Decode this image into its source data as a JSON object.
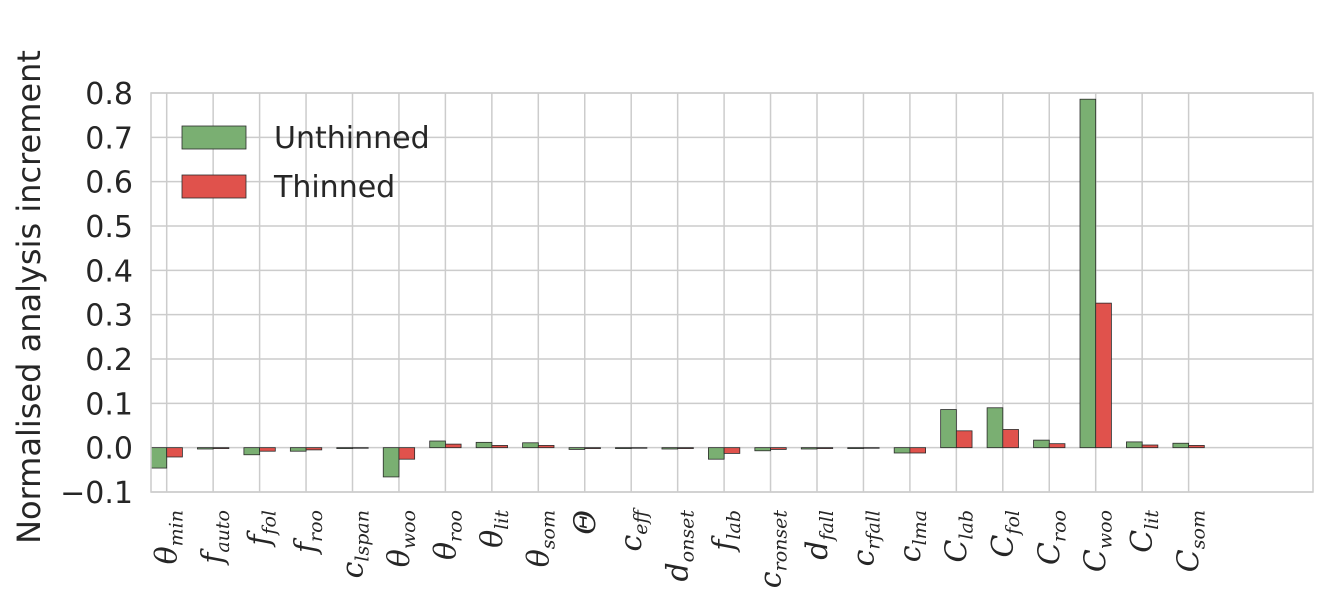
{
  "chart_data": {
    "type": "bar",
    "ylabel": "Normalised analysis increment",
    "xlabel": "",
    "title": "",
    "ylim": [
      -0.1,
      0.8
    ],
    "yticks": [
      -0.1,
      0.0,
      0.1,
      0.2,
      0.3,
      0.4,
      0.5,
      0.6,
      0.7,
      0.8
    ],
    "ytick_labels": [
      "−0.1",
      "0.0",
      "0.1",
      "0.2",
      "0.3",
      "0.4",
      "0.5",
      "0.6",
      "0.7",
      "0.8"
    ],
    "grid": true,
    "legend_position": "top-left",
    "categories": [
      {
        "base": "θ",
        "sub": "min"
      },
      {
        "base": "f",
        "sub": "auto"
      },
      {
        "base": "f",
        "sub": "fol"
      },
      {
        "base": "f",
        "sub": "roo"
      },
      {
        "base": "c",
        "sub": "lspan"
      },
      {
        "base": "θ",
        "sub": "woo"
      },
      {
        "base": "θ",
        "sub": "roo"
      },
      {
        "base": "θ",
        "sub": "lit"
      },
      {
        "base": "θ",
        "sub": "som"
      },
      {
        "base": "Θ",
        "sub": ""
      },
      {
        "base": "c",
        "sub": "eff"
      },
      {
        "base": "d",
        "sub": "onset"
      },
      {
        "base": "f",
        "sub": "lab"
      },
      {
        "base": "c",
        "sub": "ronset"
      },
      {
        "base": "d",
        "sub": "fall"
      },
      {
        "base": "c",
        "sub": "rfall"
      },
      {
        "base": "c",
        "sub": "lma"
      },
      {
        "base": "C",
        "sub": "lab"
      },
      {
        "base": "C",
        "sub": "fol"
      },
      {
        "base": "C",
        "sub": "roo"
      },
      {
        "base": "C",
        "sub": "woo"
      },
      {
        "base": "C",
        "sub": "lit"
      },
      {
        "base": "C",
        "sub": "som"
      }
    ],
    "series": [
      {
        "name": "Unthinned",
        "color": "#7aaf72",
        "values": [
          -0.046,
          -0.003,
          -0.016,
          -0.008,
          -0.002,
          -0.066,
          0.015,
          0.012,
          0.011,
          -0.004,
          -0.002,
          -0.003,
          -0.026,
          -0.007,
          -0.003,
          -0.002,
          -0.012,
          0.086,
          0.09,
          0.017,
          0.786,
          0.013,
          0.01
        ]
      },
      {
        "name": "Thinned",
        "color": "#e0524c",
        "values": [
          -0.021,
          -0.002,
          -0.008,
          -0.005,
          -0.001,
          -0.026,
          0.008,
          0.005,
          0.005,
          -0.002,
          -0.001,
          -0.002,
          -0.013,
          -0.004,
          -0.002,
          -0.001,
          -0.012,
          0.038,
          0.041,
          0.009,
          0.326,
          0.006,
          0.005
        ]
      }
    ]
  }
}
